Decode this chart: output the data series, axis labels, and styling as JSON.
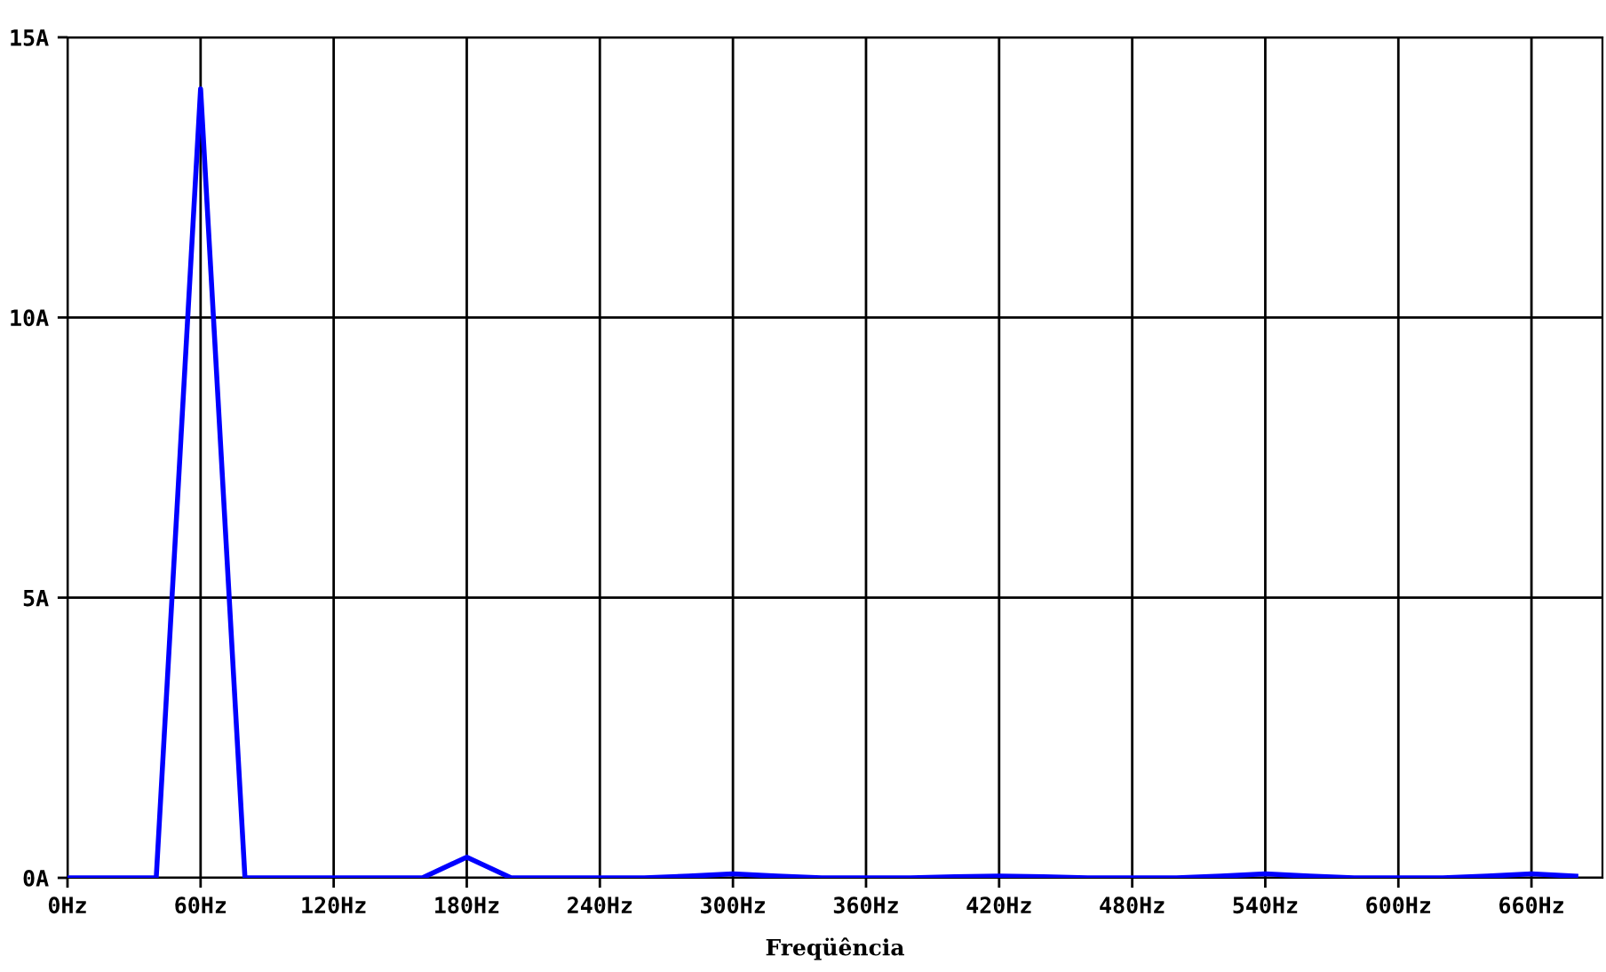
{
  "chart_data": {
    "type": "line",
    "xlabel": "Freqüência",
    "x": [
      0,
      20,
      40,
      60,
      80,
      100,
      120,
      140,
      160,
      180,
      200,
      220,
      240,
      260,
      280,
      300,
      320,
      340,
      360,
      380,
      400,
      420,
      440,
      460,
      480,
      500,
      520,
      540,
      560,
      580,
      600,
      620,
      640,
      660,
      680
    ],
    "series": [
      {
        "color": "#0000ff",
        "values": [
          0,
          0,
          0,
          14.08,
          0,
          0,
          0,
          0,
          0,
          0.37,
          0,
          0,
          0,
          0,
          0.03,
          0.07,
          0.03,
          0,
          0,
          0,
          0.02,
          0.03,
          0.02,
          0,
          0,
          0,
          0.03,
          0.07,
          0.03,
          0,
          0,
          0,
          0.03,
          0.07,
          0.03
        ]
      }
    ],
    "xlim": [
      0,
      692
    ],
    "xticks": [
      {
        "value": 0,
        "label": "0Hz"
      },
      {
        "value": 60,
        "label": "60Hz"
      },
      {
        "value": 120,
        "label": "120Hz"
      },
      {
        "value": 180,
        "label": "180Hz"
      },
      {
        "value": 240,
        "label": "240Hz"
      },
      {
        "value": 300,
        "label": "300Hz"
      },
      {
        "value": 360,
        "label": "360Hz"
      },
      {
        "value": 420,
        "label": "420Hz"
      },
      {
        "value": 480,
        "label": "480Hz"
      },
      {
        "value": 540,
        "label": "540Hz"
      },
      {
        "value": 600,
        "label": "600Hz"
      },
      {
        "value": 660,
        "label": "660Hz"
      }
    ],
    "ylim": [
      0,
      15
    ],
    "yticks": [
      {
        "value": 0,
        "label": "0A"
      },
      {
        "value": 5,
        "label": "5A"
      },
      {
        "value": 10,
        "label": "10A"
      },
      {
        "value": 15,
        "label": "15A"
      }
    ],
    "grid": true,
    "legend": false,
    "marker": "none",
    "line_style": "solid"
  }
}
